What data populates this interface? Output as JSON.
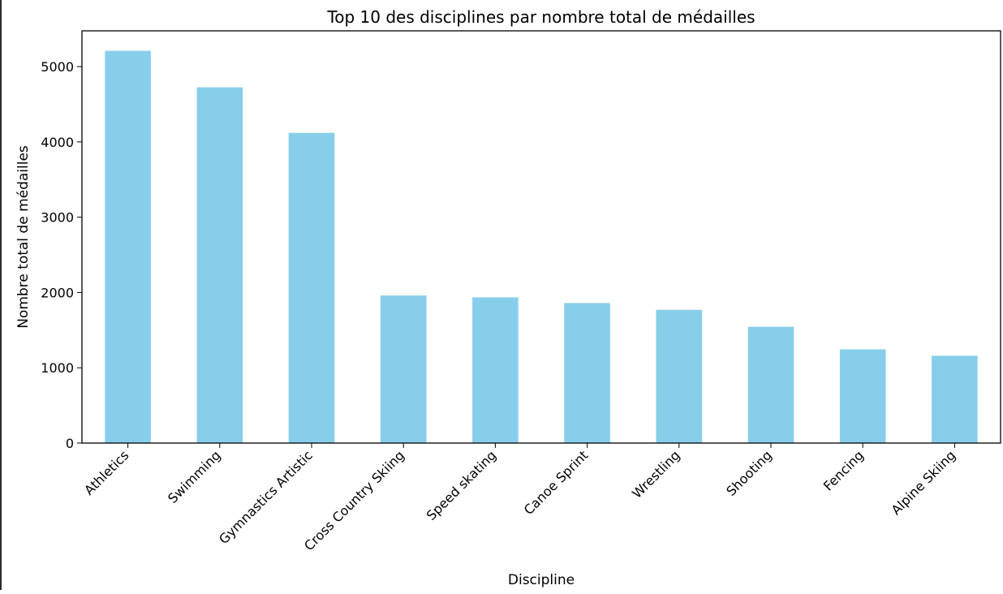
{
  "colors": {
    "bar": "#87ceeb",
    "axis": "#000000",
    "background": "#ffffff"
  },
  "chart_data": {
    "type": "bar",
    "title": "Top 10 des disciplines par nombre total de médailles",
    "xlabel": "Discipline",
    "ylabel": "Nombre total de médailles",
    "categories": [
      "Athletics",
      "Swimming",
      "Gymnastics Artistic",
      "Cross Country Skiing",
      "Speed skating",
      "Canoe Sprint",
      "Wrestling",
      "Shooting",
      "Fencing",
      "Alpine Skiing"
    ],
    "values": [
      5210,
      4725,
      4120,
      1960,
      1935,
      1860,
      1770,
      1545,
      1245,
      1160
    ],
    "ylim": [
      0,
      5475
    ],
    "yticks": [
      0,
      1000,
      2000,
      3000,
      4000,
      5000
    ],
    "ytick_labels": [
      "0",
      "1000",
      "2000",
      "3000",
      "4000",
      "5000"
    ],
    "grid": false,
    "legend": "none"
  }
}
